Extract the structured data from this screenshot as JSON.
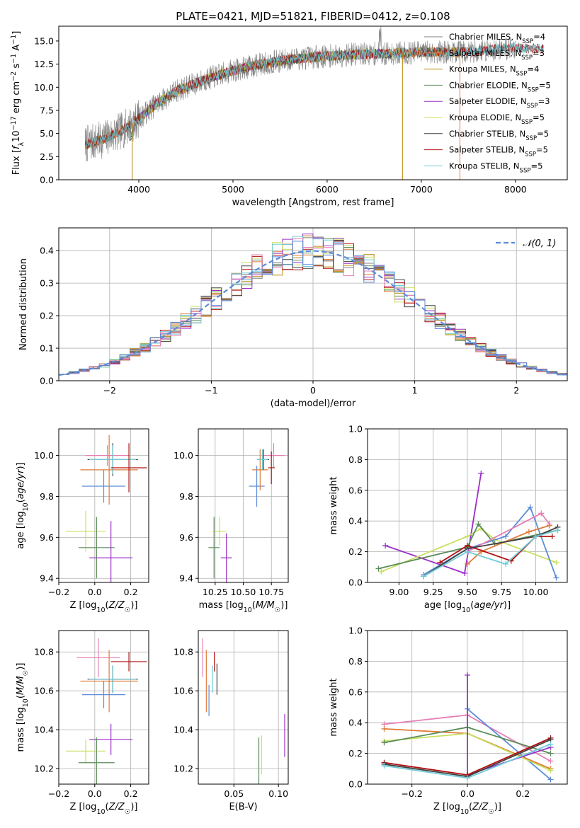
{
  "title": "PLATE=0421, MJD=51821, FIBERID=0412, z=0.108",
  "colors": {
    "Chabrier MILES": "#808080",
    "Salpeter MILES": "#e07b39",
    "Kroupa MILES": "#b8860b",
    "Chabrier ELODIE": "#5b8c5a",
    "Salpeter ELODIE": "#9b30c8",
    "Kroupa ELODIE": "#c8e060",
    "Chabrier STELIB": "#404040",
    "Salpeter STELIB": "#b01010",
    "Kroupa STELIB": "#70ccd8",
    "extra_pink": "#e67fb5",
    "extra_blue": "#5b8bd9"
  },
  "chart_data": [
    {
      "id": "spectrum",
      "type": "line",
      "title": "PLATE=0421, MJD=51821, FIBERID=0412, z=0.108",
      "xlabel": "wavelength [Angstrom, rest frame]",
      "ylabel": "Flux [f$_\\lambda$ 10$^{-17}$ erg cm$^{-2}$ s$^{-1}$ A$^{-1}$]",
      "ylabel_parts": [
        "Flux [",
        "f",
        "λ",
        "10",
        "−17",
        " erg cm",
        "−2",
        " s",
        "−1",
        " A",
        "−1",
        "]"
      ],
      "xlim": [
        3150,
        8550
      ],
      "ylim": [
        0,
        16.6
      ],
      "xticks": [
        "4000",
        "5000",
        "6000",
        "7000",
        "8000"
      ],
      "yticks": [
        "0.0",
        "2.5",
        "5.0",
        "7.5",
        "10.0",
        "12.5",
        "15.0"
      ],
      "continuum": {
        "x": [
          3430,
          3600,
          3800,
          4000,
          4200,
          4400,
          4700,
          5000,
          5300,
          5600,
          5900,
          6200,
          6500,
          6800,
          7100,
          7400,
          7700,
          8000,
          8300
        ],
        "y": [
          3.8,
          4.3,
          5.2,
          6.6,
          8.3,
          9.6,
          10.8,
          11.8,
          12.5,
          13.0,
          13.3,
          13.5,
          13.6,
          13.7,
          13.8,
          13.8,
          14.0,
          14.3,
          14.1
        ]
      },
      "legend": [
        {
          "name": "Chabrier MILES",
          "nssp": "4"
        },
        {
          "name": "Salpeter MILES",
          "nssp": "3"
        },
        {
          "name": "Kroupa MILES",
          "nssp": "4"
        },
        {
          "name": "Chabrier ELODIE",
          "nssp": "5"
        },
        {
          "name": "Salpeter ELODIE",
          "nssp": "3"
        },
        {
          "name": "Kroupa ELODIE",
          "nssp": "5"
        },
        {
          "name": "Chabrier STELIB",
          "nssp": "5"
        },
        {
          "name": "Salpeter STELIB",
          "nssp": "5"
        },
        {
          "name": "Kroupa STELIB",
          "nssp": "5"
        }
      ],
      "legend_placement": "upper right"
    },
    {
      "id": "residuals",
      "type": "histogram",
      "xlabel": "(data-model)/error",
      "ylabel": "Normed distribution",
      "xlim": [
        -2.5,
        2.5
      ],
      "ylim": [
        0,
        0.47
      ],
      "xticks": [
        "−2",
        "−1",
        "0",
        "1",
        "2"
      ],
      "yticks": [
        "0.0",
        "0.1",
        "0.2",
        "0.3",
        "0.4"
      ],
      "legend": "𝒩(0, 1)",
      "legend_placement": "upper right",
      "grid": true
    },
    {
      "id": "age_vs_Z",
      "type": "errorbar",
      "xlabel": "Z [log₁₀(Z/Z☉)]",
      "ylabel": "age  [log₁₀(age/yr)]",
      "xlim": [
        -0.2,
        0.3
      ],
      "ylim": [
        9.38,
        10.13
      ],
      "xticks": [
        "−0.2",
        "0.0",
        "0.2"
      ],
      "yticks": [
        "9.4",
        "9.6",
        "9.8",
        "10.0"
      ],
      "points": [
        {
          "color": "extra_pink",
          "x": 0.07,
          "xerr": 0.12,
          "y": 10.0,
          "yerr": 0.05
        },
        {
          "color": "extra_blue",
          "x": 0.05,
          "xerr": 0.12,
          "y": 9.85,
          "yerr": 0.08
        },
        {
          "color": "Salpeter MILES",
          "x": 0.08,
          "xerr": 0.16,
          "y": 9.93,
          "yerr": 0.17
        },
        {
          "color": "Chabrier STELIB",
          "x": 0.1,
          "xerr": 0.14,
          "y": 9.98,
          "yerr": 0.08
        },
        {
          "color": "Kroupa STELIB",
          "x": 0.1,
          "xerr": 0.13,
          "y": 9.98,
          "yerr": 0.07
        },
        {
          "color": "Salpeter STELIB",
          "x": 0.19,
          "xerr": 0.1,
          "y": 9.94,
          "yerr": 0.12
        },
        {
          "color": "Kroupa ELODIE",
          "x": -0.05,
          "xerr": 0.11,
          "y": 9.63,
          "yerr": 0.1
        },
        {
          "color": "Chabrier ELODIE",
          "x": 0.01,
          "xerr": 0.1,
          "y": 9.55,
          "yerr": 0.15
        },
        {
          "color": "Salpeter ELODIE",
          "x": 0.09,
          "xerr": 0.12,
          "y": 9.5,
          "yerr": 0.18
        }
      ]
    },
    {
      "id": "age_vs_mass",
      "type": "errorbar",
      "xlabel": "mass [log₁₀(M/M☉)]",
      "xlim": [
        10.1,
        10.9
      ],
      "ylim": [
        9.38,
        10.13
      ],
      "xticks": [
        "10.25",
        "10.50",
        "10.75"
      ],
      "yticks": [
        "9.4",
        "9.6",
        "9.8",
        "10.0"
      ],
      "points": [
        {
          "color": "extra_pink",
          "x": 10.77,
          "xerr": 0.1,
          "y": 10.0,
          "yerr": 0.06
        },
        {
          "color": "extra_blue",
          "x": 10.62,
          "xerr": 0.07,
          "y": 9.85,
          "yerr": 0.1
        },
        {
          "color": "Salpeter MILES",
          "x": 10.65,
          "xerr": 0.07,
          "y": 9.93,
          "yerr": 0.1
        },
        {
          "color": "Chabrier STELIB",
          "x": 10.68,
          "xerr": 0.05,
          "y": 9.98,
          "yerr": 0.05
        },
        {
          "color": "Kroupa STELIB",
          "x": 10.67,
          "xerr": 0.05,
          "y": 9.98,
          "yerr": 0.05
        },
        {
          "color": "Salpeter STELIB",
          "x": 10.75,
          "xerr": 0.03,
          "y": 9.94,
          "yerr": 0.08
        },
        {
          "color": "Kroupa ELODIE",
          "x": 10.29,
          "xerr": 0.06,
          "y": 9.63,
          "yerr": 0.07
        },
        {
          "color": "Chabrier ELODIE",
          "x": 10.24,
          "xerr": 0.05,
          "y": 9.55,
          "yerr": 0.15
        },
        {
          "color": "Salpeter ELODIE",
          "x": 10.35,
          "xerr": 0.05,
          "y": 9.5,
          "yerr": 0.12
        }
      ]
    },
    {
      "id": "weight_vs_age",
      "type": "line",
      "xlabel": "age  [log₁₀(age/yr)]",
      "ylabel": "mass weight",
      "xlim": [
        8.77,
        10.23
      ],
      "ylim": [
        0,
        1.0
      ],
      "xticks": [
        "9.00",
        "9.25",
        "9.50",
        "9.75",
        "10.00"
      ],
      "yticks": [
        "0.0",
        "0.2",
        "0.4",
        "0.6",
        "0.8",
        "1.0"
      ],
      "grid": true,
      "series": [
        {
          "color": "Salpeter ELODIE",
          "x": [
            8.9,
            9.48,
            9.6,
            9.51
          ],
          "y": [
            0.24,
            0.06,
            0.71,
            0.22
          ]
        },
        {
          "color": "Kroupa ELODIE",
          "x": [
            8.87,
            9.5,
            9.6,
            9.7,
            10.15
          ],
          "y": [
            0.07,
            0.3,
            0.35,
            0.28,
            0.13
          ]
        },
        {
          "color": "Chabrier ELODIE",
          "x": [
            8.85,
            9.5,
            9.58,
            9.7,
            10.16
          ],
          "y": [
            0.09,
            0.23,
            0.38,
            0.25,
            0.34
          ]
        },
        {
          "color": "extra_blue",
          "x": [
            9.18,
            9.5,
            9.78,
            9.96,
            10.15
          ],
          "y": [
            0.05,
            0.22,
            0.3,
            0.49,
            0.03
          ]
        },
        {
          "color": "extra_pink",
          "x": [
            9.5,
            10.04,
            10.1
          ],
          "y": [
            0.2,
            0.45,
            0.38
          ]
        },
        {
          "color": "Salpeter MILES",
          "x": [
            9.5,
            9.6,
            9.95,
            10.1
          ],
          "y": [
            0.12,
            0.2,
            0.33,
            0.37
          ]
        },
        {
          "color": "Salpeter STELIB",
          "x": [
            9.3,
            9.5,
            9.82,
            10.0,
            10.12
          ],
          "y": [
            0.13,
            0.24,
            0.14,
            0.3,
            0.3
          ]
        },
        {
          "color": "Chabrier STELIB",
          "x": [
            9.18,
            9.5,
            10.0,
            10.16
          ],
          "y": [
            0.04,
            0.22,
            0.3,
            0.36
          ]
        },
        {
          "color": "Kroupa STELIB",
          "x": [
            9.18,
            9.5,
            9.78,
            10.0,
            10.16
          ],
          "y": [
            0.04,
            0.2,
            0.12,
            0.3,
            0.34
          ]
        }
      ]
    },
    {
      "id": "mass_vs_Z",
      "type": "errorbar",
      "xlabel": "Z [log₁₀(Z/Z☉)]",
      "ylabel": "mass [log₁₀(M/M☉)]",
      "xlim": [
        -0.2,
        0.3
      ],
      "ylim": [
        10.12,
        10.91
      ],
      "xticks": [
        "−0.2",
        "0.0",
        "0.2"
      ],
      "yticks": [
        "10.2",
        "10.4",
        "10.6",
        "10.8"
      ],
      "points": [
        {
          "color": "extra_pink",
          "x": 0.02,
          "xerr": 0.12,
          "y": 10.77,
          "yerr": 0.1
        },
        {
          "color": "Salpeter STELIB",
          "x": 0.19,
          "xerr": 0.1,
          "y": 10.75,
          "yerr": 0.05
        },
        {
          "color": "Salpeter MILES",
          "x": 0.08,
          "xerr": 0.16,
          "y": 10.65,
          "yerr": 0.16
        },
        {
          "color": "Chabrier STELIB",
          "x": 0.1,
          "xerr": 0.14,
          "y": 10.66,
          "yerr": 0.07
        },
        {
          "color": "Kroupa STELIB",
          "x": 0.1,
          "xerr": 0.13,
          "y": 10.66,
          "yerr": 0.07
        },
        {
          "color": "extra_blue",
          "x": 0.05,
          "xerr": 0.12,
          "y": 10.58,
          "yerr": 0.07
        },
        {
          "color": "Salpeter ELODIE",
          "x": 0.09,
          "xerr": 0.12,
          "y": 10.35,
          "yerr": 0.08
        },
        {
          "color": "Kroupa ELODIE",
          "x": -0.05,
          "xerr": 0.11,
          "y": 10.29,
          "yerr": 0.06
        },
        {
          "color": "Chabrier ELODIE",
          "x": 0.01,
          "xerr": 0.1,
          "y": 10.23,
          "yerr": 0.13
        }
      ]
    },
    {
      "id": "mass_vs_EBV",
      "type": "errorbar",
      "xlabel": "E(B-V)",
      "xlim": [
        0.01,
        0.111
      ],
      "ylim": [
        10.12,
        10.91
      ],
      "xticks": [
        "0.05",
        "0.10"
      ],
      "yticks": [
        "10.2",
        "10.4",
        "10.6",
        "10.8"
      ],
      "points": [
        {
          "color": "extra_pink",
          "x": 0.015,
          "xerr": 0.0,
          "y": 10.77,
          "yerr": 0.1
        },
        {
          "color": "Salpeter STELIB",
          "x": 0.028,
          "xerr": 0.0,
          "y": 10.75,
          "yerr": 0.05
        },
        {
          "color": "Salpeter MILES",
          "x": 0.019,
          "xerr": 0.0,
          "y": 10.65,
          "yerr": 0.16
        },
        {
          "color": "Chabrier STELIB",
          "x": 0.031,
          "xerr": 0.0,
          "y": 10.66,
          "yerr": 0.08
        },
        {
          "color": "Kroupa STELIB",
          "x": 0.026,
          "xerr": 0.0,
          "y": 10.66,
          "yerr": 0.07
        },
        {
          "color": "extra_blue",
          "x": 0.022,
          "xerr": 0.0,
          "y": 10.55,
          "yerr": 0.08
        },
        {
          "color": "Salpeter ELODIE",
          "x": 0.107,
          "xerr": 0.0,
          "y": 10.37,
          "yerr": 0.11
        },
        {
          "color": "Kroupa ELODIE",
          "x": 0.081,
          "xerr": 0.0,
          "y": 10.27,
          "yerr": 0.1
        },
        {
          "color": "Chabrier ELODIE",
          "x": 0.078,
          "xerr": 0.0,
          "y": 10.23,
          "yerr": 0.13
        }
      ]
    },
    {
      "id": "weight_vs_Z",
      "type": "line",
      "xlabel": "Z [log₁₀(Z/Z☉)]",
      "ylabel": "mass weight",
      "xlim": [
        -0.36,
        0.36
      ],
      "ylim": [
        0,
        1.0
      ],
      "xticks": [
        "−0.2",
        "0.0",
        "0.2"
      ],
      "yticks": [
        "0.0",
        "0.2",
        "0.4",
        "0.6",
        "0.8",
        "1.0"
      ],
      "grid": true,
      "series": [
        {
          "color": "extra_pink",
          "x": [
            -0.3,
            0.0,
            0.3
          ],
          "y": [
            0.39,
            0.45,
            0.15
          ]
        },
        {
          "color": "extra_blue",
          "x": [
            0.0,
            0.3
          ],
          "y": [
            0.49,
            0.03
          ]
        },
        {
          "color": "Salpeter MILES",
          "x": [
            -0.3,
            0.0,
            0.3
          ],
          "y": [
            0.36,
            0.33,
            0.1
          ]
        },
        {
          "color": "Kroupa ELODIE",
          "x": [
            -0.3,
            0.0,
            0.3
          ],
          "y": [
            0.28,
            0.33,
            0.09
          ]
        },
        {
          "color": "Chabrier ELODIE",
          "x": [
            -0.3,
            0.0,
            0.3
          ],
          "y": [
            0.27,
            0.37,
            0.2
          ]
        },
        {
          "color": "Salpeter ELODIE",
          "x": [
            0.0,
            0.0,
            0.3
          ],
          "y": [
            0.71,
            0.06,
            0.24
          ]
        },
        {
          "color": "Salpeter STELIB",
          "x": [
            -0.3,
            0.0,
            0.3
          ],
          "y": [
            0.14,
            0.06,
            0.3
          ]
        },
        {
          "color": "Chabrier STELIB",
          "x": [
            -0.3,
            0.0,
            0.3
          ],
          "y": [
            0.13,
            0.05,
            0.29
          ]
        },
        {
          "color": "Kroupa STELIB",
          "x": [
            -0.3,
            0.0,
            0.3
          ],
          "y": [
            0.12,
            0.04,
            0.26
          ]
        }
      ]
    }
  ]
}
